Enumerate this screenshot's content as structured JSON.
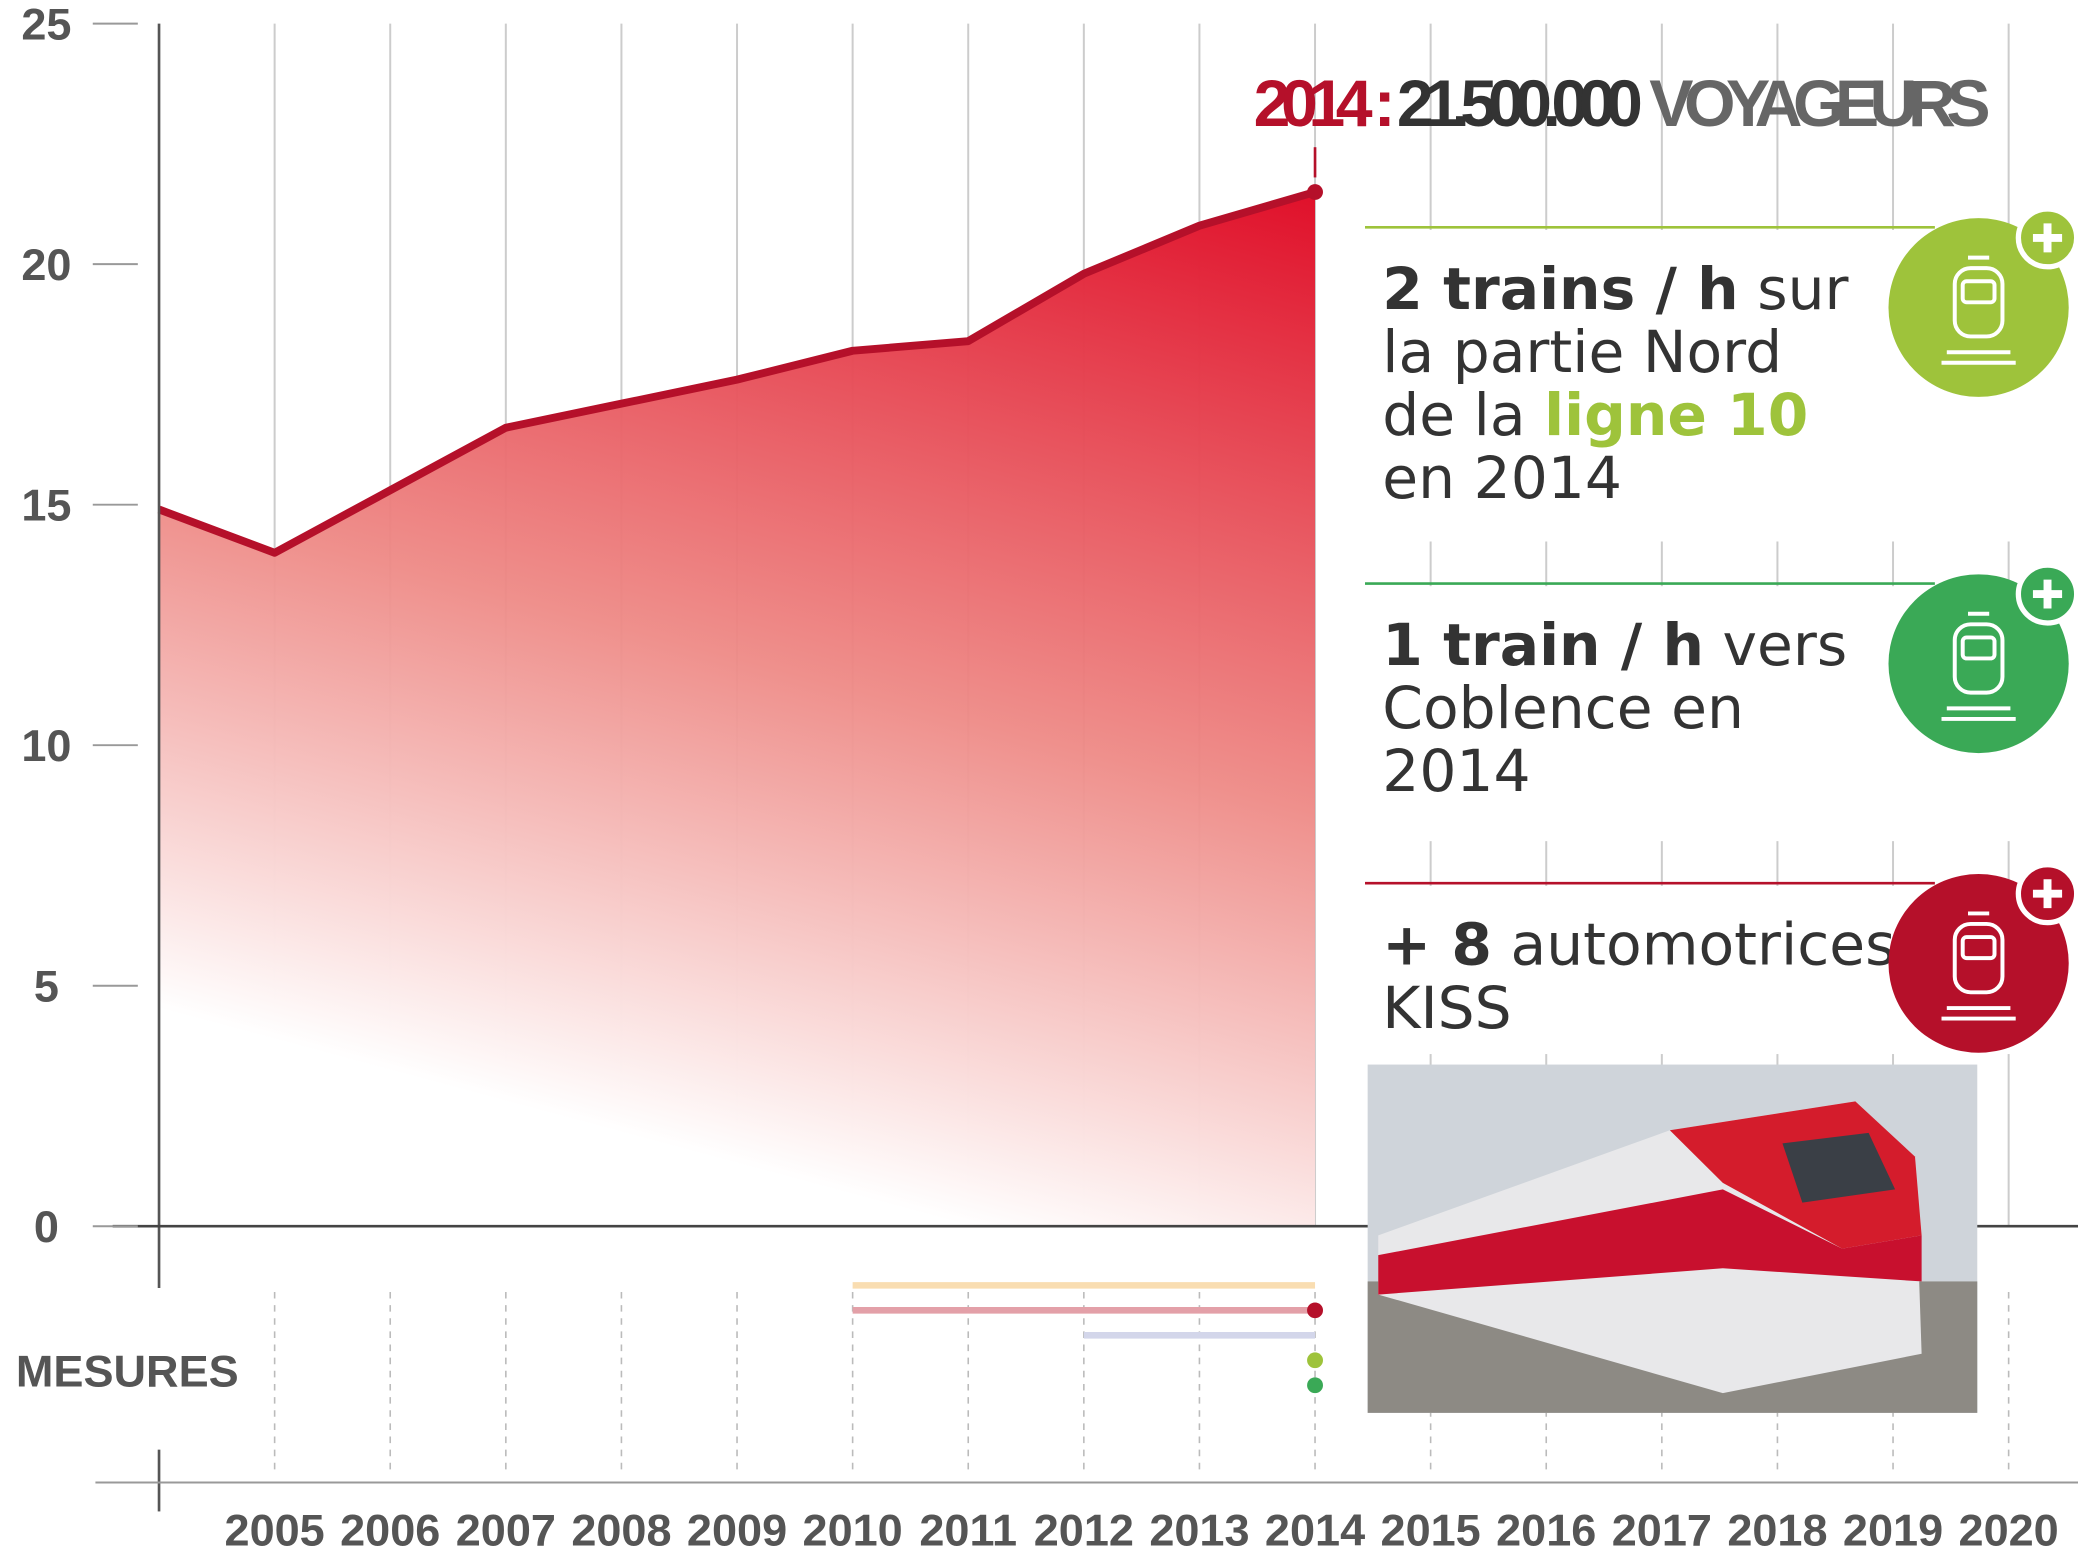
{
  "chart_data": {
    "type": "area",
    "x": [
      2004,
      2005,
      2006,
      2007,
      2008,
      2009,
      2010,
      2011,
      2012,
      2013,
      2014
    ],
    "values": [
      14.9,
      14.0,
      15.3,
      16.6,
      17.1,
      17.6,
      18.2,
      18.4,
      19.8,
      20.8,
      21.5
    ],
    "color": "#e0102a",
    "line_color": "#b5102a",
    "xlim": [
      2004,
      2020.6
    ],
    "ylim": [
      0,
      25
    ],
    "xticks": [
      2005,
      2006,
      2007,
      2008,
      2009,
      2010,
      2011,
      2012,
      2013,
      2014,
      2015,
      2016,
      2017,
      2018,
      2019,
      2020
    ],
    "yticks": [
      0,
      5,
      10,
      15,
      20,
      25
    ],
    "grid": true,
    "annotation": {
      "year": "2014",
      "separator": ":",
      "value": "21.500.000",
      "unit": "VOYAGEURS"
    },
    "measures_label": "MESURES",
    "measures": [
      {
        "start": 2010,
        "end": 2014,
        "color": "#f9ddb1"
      },
      {
        "start": 2010,
        "end": 2014,
        "color": "#e3a0a8",
        "dot_color": "#b5102a"
      },
      {
        "start": 2012,
        "end": 2014,
        "color": "#d3d6ea"
      },
      {
        "start": 2014,
        "end": 2014,
        "dot_color": "#9ec33b"
      },
      {
        "start": 2014,
        "end": 2014,
        "dot_color": "#3aa956"
      }
    ]
  },
  "panels": [
    {
      "color": "#9ec33b",
      "lines": [
        [
          {
            "text": "2 trains / h",
            "bold": true
          },
          {
            "text": " sur"
          }
        ],
        [
          {
            "text": "la partie Nord"
          }
        ],
        [
          {
            "text": "de la "
          },
          {
            "text": "ligne 10",
            "bold": true,
            "color": "#9ec33b"
          }
        ],
        [
          {
            "text": "en 2014"
          }
        ]
      ]
    },
    {
      "color": "#3aa956",
      "lines": [
        [
          {
            "text": "1 train / h",
            "bold": true
          },
          {
            "text": " vers"
          }
        ],
        [
          {
            "text": "Coblence en"
          }
        ],
        [
          {
            "text": "2014"
          }
        ]
      ]
    },
    {
      "color": "#b5102a",
      "lines": [
        [
          {
            "text": "+ 8",
            "bold": true
          },
          {
            "text": " automotrices"
          }
        ],
        [
          {
            "text": "KISS"
          }
        ]
      ]
    }
  ]
}
